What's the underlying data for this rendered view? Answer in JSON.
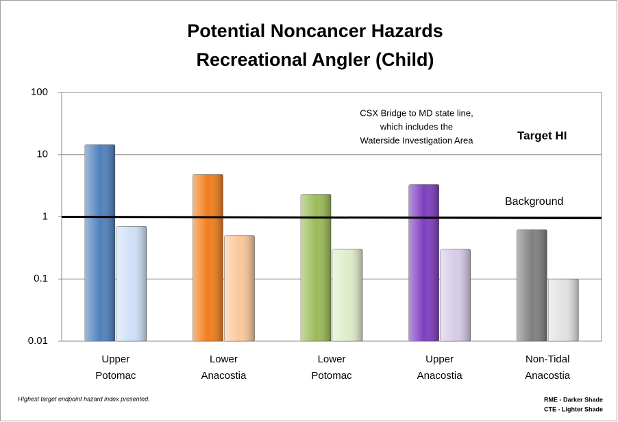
{
  "chart_data": {
    "type": "bar",
    "title": [
      "Potential Noncancer Hazards",
      "Recreational Angler (Child)"
    ],
    "categories": [
      "Upper Potomac",
      "Lower Anacostia",
      "Lower Potomac",
      "Upper Anacostia",
      "Non-Tidal Anacostia"
    ],
    "series": [
      {
        "name": "RME - Darker Shade",
        "colors": [
          "#4f81bd",
          "#f07f1c",
          "#9bbb59",
          "#7f3fbf",
          "#808080"
        ],
        "values": [
          14.5,
          4.8,
          2.3,
          3.3,
          0.62
        ]
      },
      {
        "name": "CTE - Lighter Shade",
        "colors": [
          "#cfe0f7",
          "#fbc89a",
          "#dfeccb",
          "#d6cbe8",
          "#e2e2e2"
        ],
        "values": [
          0.7,
          0.5,
          0.3,
          0.3,
          0.1
        ]
      }
    ],
    "log_scale": true,
    "ylim": [
      0.01,
      100
    ],
    "yticks": [
      0.01,
      0.1,
      1,
      10,
      100
    ],
    "grid": true,
    "target_line": {
      "value": 1,
      "label": "Target HI"
    },
    "annotations": {
      "note": [
        "CSX Bridge to MD state line,",
        "which includes the",
        "Waterside Investigation Area"
      ],
      "background": "Background"
    },
    "footnote": "HIghest target endpoint hazard index presented."
  }
}
